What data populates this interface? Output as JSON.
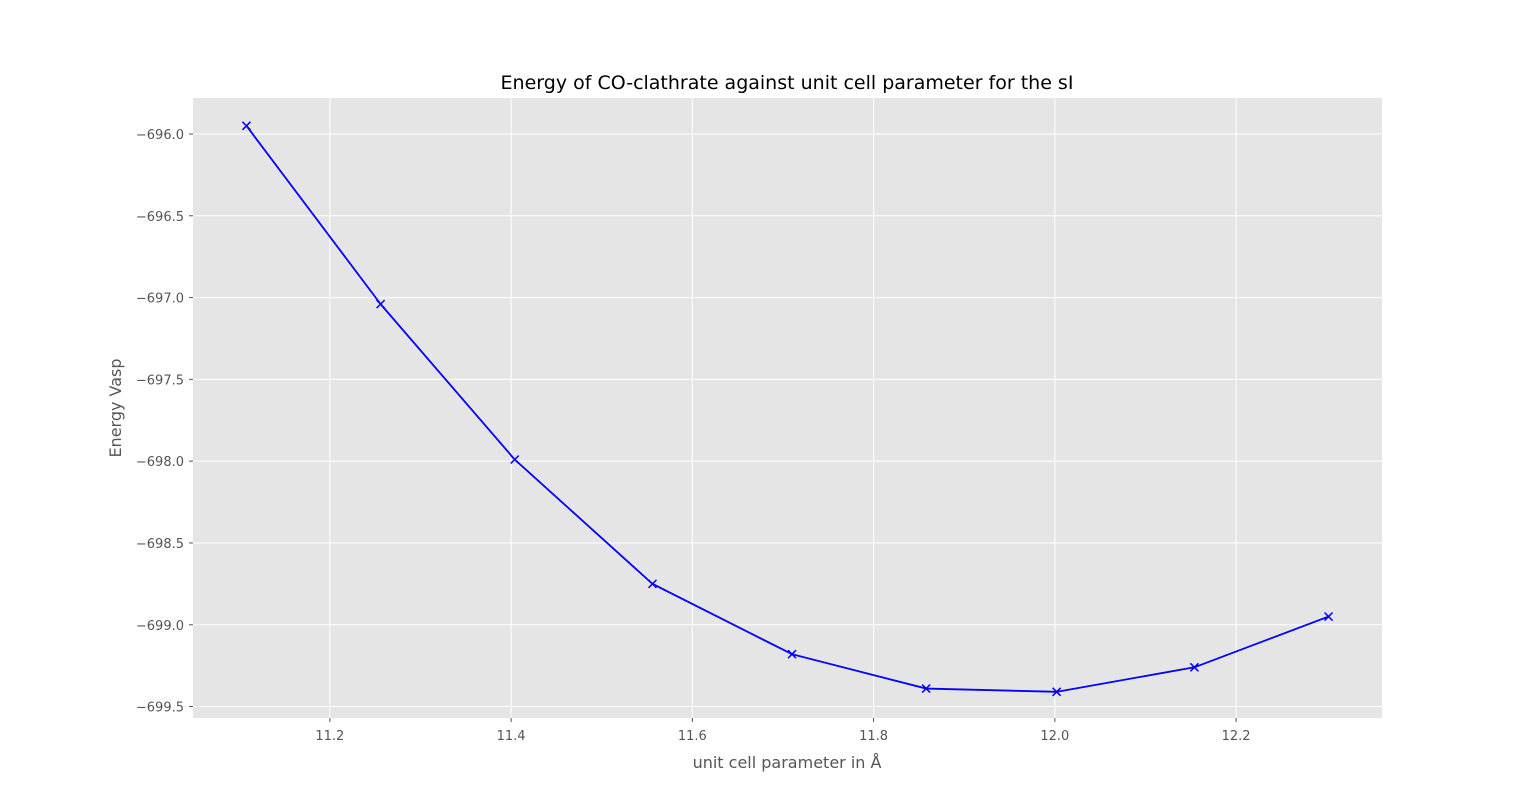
{
  "chart_data": {
    "type": "line",
    "title": "Energy of CO-clathrate against unit cell parameter for the sI",
    "xlabel": "unit cell parameter in Å",
    "ylabel": "Energy Vasp",
    "x": [
      11.108,
      11.256,
      11.404,
      11.556,
      11.71,
      11.858,
      12.002,
      12.154,
      12.302
    ],
    "series": [
      {
        "values": [
          -695.95,
          -697.04,
          -697.99,
          -698.75,
          -699.18,
          -699.39,
          -699.41,
          -699.26,
          -698.95
        ],
        "color": "#0000ff",
        "marker": "x"
      }
    ],
    "xlim": [
      11.049,
      12.361
    ],
    "ylim": [
      -699.57,
      -695.78
    ],
    "xticks": [
      "11.2",
      "11.4",
      "11.6",
      "11.8",
      "12.0",
      "12.2"
    ],
    "xtick_values": [
      11.2,
      11.4,
      11.6,
      11.8,
      12.0,
      12.2
    ],
    "yticks": [
      "−696.0",
      "−696.5",
      "−697.0",
      "−697.5",
      "−698.0",
      "−698.5",
      "−699.0",
      "−699.5"
    ],
    "ytick_values": [
      -696.0,
      -696.5,
      -697.0,
      -697.5,
      -698.0,
      -698.5,
      -699.0,
      -699.5
    ],
    "grid": true,
    "style": "ggplot",
    "plot_background": "#e5e5e5",
    "grid_color": "#ffffff"
  }
}
